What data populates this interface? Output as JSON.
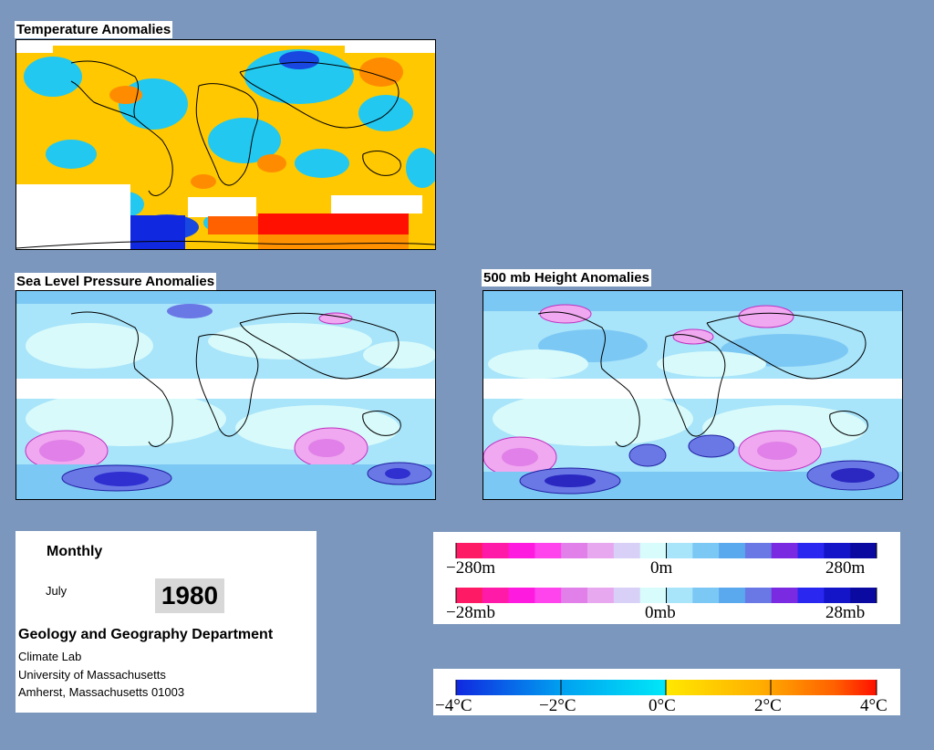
{
  "maps": {
    "temperature": {
      "title": "Temperature Anomalies"
    },
    "slp": {
      "title": "Sea Level Pressure Anomalies"
    },
    "height500": {
      "title": "500 mb Height Anomalies"
    }
  },
  "info": {
    "period": "Monthly",
    "month": "July",
    "year": "1980",
    "department": "Geology and Geography Department",
    "lines": [
      "Climate Lab",
      "University of Massachusetts",
      "Amherst, Massachusetts 01003"
    ]
  },
  "legend_height": {
    "colors": [
      "#ff1a66",
      "#ff1aa8",
      "#ff1ae0",
      "#ff44ee",
      "#e080e8",
      "#e8a8f0",
      "#d8d0f6",
      "#d8fcfc",
      "#a8e4fa",
      "#7cc8f4",
      "#5aa8ee",
      "#6a78e6",
      "#7a2ae0",
      "#2a28f0",
      "#1414c8",
      "#0a0aa0"
    ],
    "labels": [
      "−280m",
      "0m",
      "280m"
    ]
  },
  "legend_pressure": {
    "colors": [
      "#ff1a66",
      "#ff1aa8",
      "#ff1ae0",
      "#ff44ee",
      "#e080e8",
      "#e8a8f0",
      "#d8d0f6",
      "#d8fcfc",
      "#a8e4fa",
      "#7cc8f4",
      "#5aa8ee",
      "#6a78e6",
      "#7a2ae0",
      "#2a28f0",
      "#1414c8",
      "#0a0aa0"
    ],
    "labels": [
      "−28mb",
      "0mb",
      "28mb"
    ]
  },
  "legend_temperature": {
    "gradient": [
      "#1028e0",
      "#00a0f0",
      "#00e8f8",
      "#ffe800",
      "#ffb000",
      "#ff6000",
      "#ff1000"
    ],
    "labels": [
      "−4°C",
      "−2°C",
      "0°C",
      "2°C",
      "4°C"
    ]
  },
  "colors": {
    "background": "#7b97bd",
    "temp_warm": "#ffc800",
    "temp_cool": "#22c8f0",
    "temp_hot": "#ff5010",
    "temp_cold": "#1848e0",
    "field_pale": "#d8fafa",
    "field_light": "#a8e4fa",
    "field_pink": "#f0a8f0",
    "field_magenta": "#ff40e0",
    "field_purple": "#6040e8",
    "field_deep": "#2020d0"
  }
}
